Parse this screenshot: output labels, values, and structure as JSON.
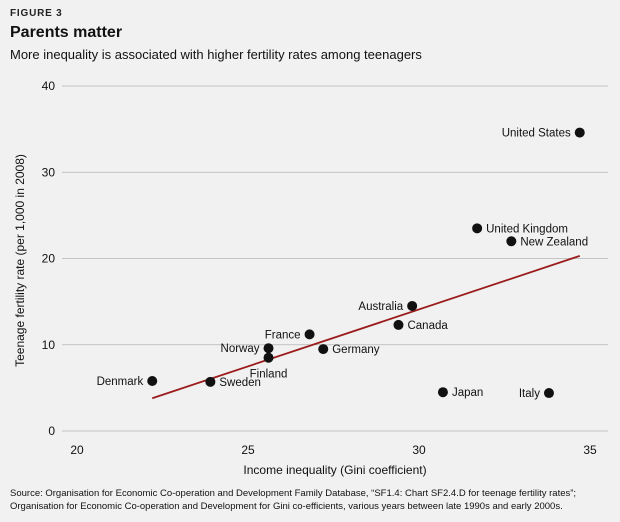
{
  "figure_label": "FIGURE 3",
  "title": "Parents matter",
  "subtitle": "More inequality is associated with higher fertility rates among teenagers",
  "source": "Source: Organisation for Economic Co-operation and Development Family Database, “SF1.4: Chart SF2.4.D for teenage fertility rates”; Organisation for Economic Co-operation and Development for Gini co-efficients, various years between late 1990s and early 2000s.",
  "colors": {
    "point": "#111111",
    "trend": "#9b1c1c",
    "grid": "#b5b5b5",
    "background": "#f1f1f1"
  },
  "chart_data": {
    "type": "scatter",
    "title": "Parents matter",
    "xlabel": "Income inequality (Gini coefficient)",
    "ylabel": "Teenage fertility rate (per 1,000 in 2008)",
    "xlim": [
      20,
      35
    ],
    "ylim": [
      0,
      40
    ],
    "xticks": [
      20,
      25,
      30,
      35
    ],
    "yticks": [
      0,
      10,
      20,
      30,
      40
    ],
    "grid": "horizontal",
    "points": [
      {
        "label": "United States",
        "x": 34.7,
        "y": 34.6,
        "side": "left"
      },
      {
        "label": "United Kingdom",
        "x": 31.7,
        "y": 23.5,
        "side": "right"
      },
      {
        "label": "New Zealand",
        "x": 32.7,
        "y": 22.0,
        "side": "right"
      },
      {
        "label": "Australia",
        "x": 29.8,
        "y": 14.5,
        "side": "left"
      },
      {
        "label": "Canada",
        "x": 29.4,
        "y": 12.3,
        "side": "right"
      },
      {
        "label": "France",
        "x": 26.8,
        "y": 11.2,
        "side": "left"
      },
      {
        "label": "Norway",
        "x": 25.6,
        "y": 9.6,
        "side": "left"
      },
      {
        "label": "Finland",
        "x": 25.6,
        "y": 8.5,
        "side": "below"
      },
      {
        "label": "Germany",
        "x": 27.2,
        "y": 9.5,
        "side": "right"
      },
      {
        "label": "Denmark",
        "x": 22.2,
        "y": 5.8,
        "side": "left"
      },
      {
        "label": "Sweden",
        "x": 23.9,
        "y": 5.7,
        "side": "right"
      },
      {
        "label": "Japan",
        "x": 30.7,
        "y": 4.5,
        "side": "right"
      },
      {
        "label": "Italy",
        "x": 33.8,
        "y": 4.4,
        "side": "left"
      }
    ],
    "trend_line": {
      "x": [
        22.2,
        34.7
      ],
      "y": [
        3.8,
        20.3
      ]
    }
  }
}
